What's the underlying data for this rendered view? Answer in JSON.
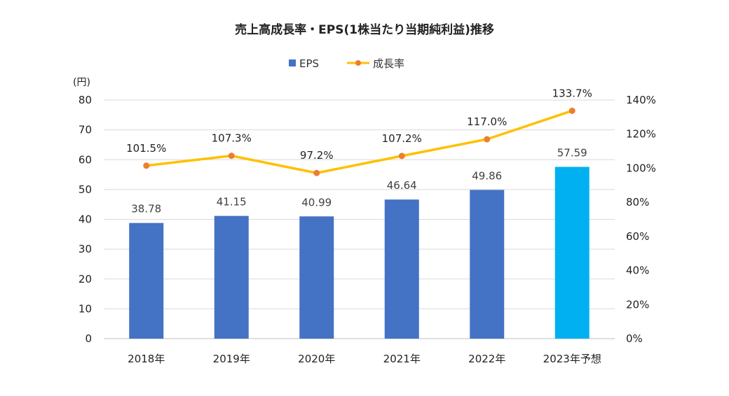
{
  "chart_data": {
    "type": "bar",
    "title": "売上高成長率・EPS(1株当たり当期純利益)推移",
    "y_unit": "(円)",
    "categories": [
      "2018年",
      "2019年",
      "2020年",
      "2021年",
      "2022年",
      "2023年予想"
    ],
    "ylim": [
      0,
      80
    ],
    "y_ticks": [
      "0",
      "10",
      "20",
      "30",
      "40",
      "50",
      "60",
      "70",
      "80"
    ],
    "y2lim": [
      0,
      140
    ],
    "y2_ticks": [
      "0%",
      "20%",
      "40%",
      "60%",
      "80%",
      "100%",
      "120%",
      "140%"
    ],
    "legend_position": "top",
    "grid": true,
    "series": [
      {
        "name": "EPS",
        "kind": "bar",
        "axis": "left",
        "color": "#4472C4",
        "highlight_color": "#00B0F0",
        "highlight_index": 5,
        "values": [
          38.78,
          41.15,
          40.99,
          46.64,
          49.86,
          57.59
        ],
        "labels": [
          "38.78",
          "41.15",
          "40.99",
          "46.64",
          "49.86",
          "57.59"
        ]
      },
      {
        "name": "成長率",
        "kind": "line",
        "axis": "right",
        "color": "#FFC000",
        "marker_color": "#ED7D31",
        "values": [
          101.5,
          107.3,
          97.2,
          107.2,
          117.0,
          133.7
        ],
        "labels": [
          "101.5%",
          "107.3%",
          "97.2%",
          "107.2%",
          "117.0%",
          "133.7%"
        ]
      }
    ]
  }
}
